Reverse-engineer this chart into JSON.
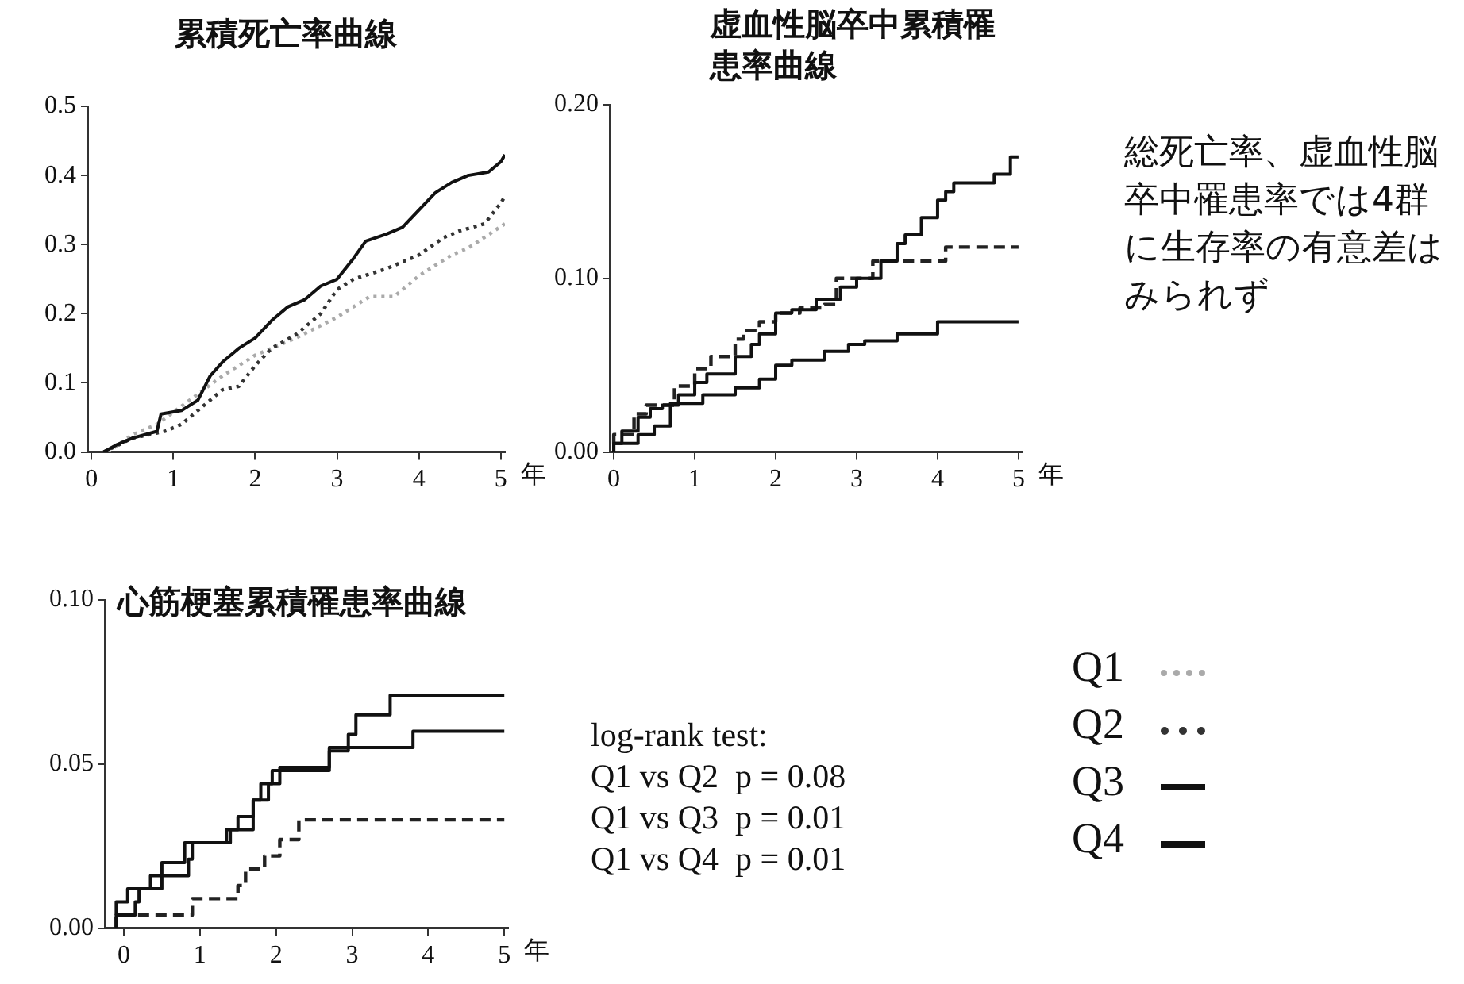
{
  "chart_data": [
    {
      "type": "line",
      "title": "累積死亡率曲線",
      "xlabel": "年",
      "xlim": [
        -0.05,
        5.05
      ],
      "xticks": [
        0,
        1,
        2,
        3,
        4,
        5
      ],
      "ylim": [
        0,
        0.5
      ],
      "yticks": [
        {
          "value": 0,
          "label": "0.0"
        },
        0.1,
        0.2,
        0.3,
        0.4,
        0.5
      ],
      "grid": false,
      "legend": false,
      "series": [
        {
          "color": "#111111",
          "line_style": "solid",
          "x": [
            0.15,
            0.3,
            0.5,
            0.8,
            0.85,
            1.1,
            1.3,
            1.45,
            1.6,
            1.8,
            2.0,
            2.2,
            2.4,
            2.6,
            2.8,
            3.0,
            3.2,
            3.35,
            3.6,
            3.8,
            4.0,
            4.2,
            4.4,
            4.6,
            4.85,
            5.0,
            5.05
          ],
          "values": [
            0,
            0.01,
            0.02,
            0.03,
            0.055,
            0.06,
            0.075,
            0.11,
            0.13,
            0.15,
            0.165,
            0.19,
            0.21,
            0.22,
            0.24,
            0.25,
            0.28,
            0.305,
            0.315,
            0.325,
            0.35,
            0.375,
            0.39,
            0.4,
            0.405,
            0.42,
            0.43
          ]
        },
        {
          "color": "#333333",
          "line_style": "dotted",
          "x": [
            0.15,
            0.5,
            0.9,
            1.1,
            1.4,
            1.6,
            1.8,
            2.0,
            2.2,
            2.5,
            2.8,
            3.0,
            3.2,
            3.6,
            4.0,
            4.3,
            4.5,
            4.8,
            5.0,
            5.05
          ],
          "values": [
            0,
            0.02,
            0.03,
            0.04,
            0.07,
            0.09,
            0.095,
            0.125,
            0.15,
            0.17,
            0.2,
            0.235,
            0.25,
            0.265,
            0.285,
            0.31,
            0.32,
            0.33,
            0.36,
            0.37
          ]
        },
        {
          "color": "#aaaaaa",
          "line_style": "dotted",
          "x": [
            0.2,
            0.5,
            0.8,
            1.2,
            1.6,
            2.0,
            2.5,
            3.0,
            3.2,
            3.4,
            3.7,
            4.0,
            4.4,
            4.6,
            5.05
          ],
          "values": [
            0,
            0.025,
            0.04,
            0.075,
            0.11,
            0.14,
            0.165,
            0.195,
            0.21,
            0.225,
            0.225,
            0.255,
            0.285,
            0.295,
            0.33
          ]
        }
      ]
    },
    {
      "type": "step",
      "title": "虚血性脳卒中累積罹患率曲線",
      "xlabel": "年",
      "xlim": [
        -0.05,
        5.05
      ],
      "xticks": [
        0,
        1,
        2,
        3,
        4,
        5
      ],
      "ylim": [
        0,
        0.2
      ],
      "yticks": [
        {
          "value": 0,
          "label": "0.00"
        },
        {
          "value": 0.1,
          "label": "0.10"
        },
        {
          "value": 0.2,
          "label": "0.20"
        }
      ],
      "grid": false,
      "legend": false,
      "series": [
        {
          "color": "#111111",
          "line_style": "solid",
          "x": [
            0,
            0.1,
            0.3,
            0.45,
            0.6,
            0.8,
            1.0,
            1.15,
            1.5,
            1.7,
            1.8,
            2.0,
            2.2,
            2.5,
            2.8,
            3.0,
            3.3,
            3.5,
            3.6,
            3.8,
            4.0,
            4.1,
            4.2,
            4.7,
            4.9,
            5.0
          ],
          "values": [
            0,
            0.005,
            0.012,
            0.02,
            0.025,
            0.027,
            0.033,
            0.04,
            0.045,
            0.055,
            0.062,
            0.068,
            0.08,
            0.082,
            0.088,
            0.095,
            0.1,
            0.11,
            0.12,
            0.125,
            0.135,
            0.145,
            0.15,
            0.155,
            0.16,
            0.17
          ]
        },
        {
          "color": "#222222",
          "line_style": "dashed",
          "x": [
            0,
            0.25,
            0.4,
            0.75,
            1.0,
            1.2,
            1.5,
            1.6,
            1.8,
            2.0,
            2.3,
            2.6,
            2.75,
            2.95,
            3.2,
            4.1,
            4.35,
            5.0
          ],
          "values": [
            0.005,
            0.01,
            0.022,
            0.027,
            0.038,
            0.048,
            0.055,
            0.065,
            0.07,
            0.075,
            0.08,
            0.083,
            0.085,
            0.1,
            0.1,
            0.11,
            0.118,
            0.118
          ]
        },
        {
          "color": "#111111",
          "line_style": "solid",
          "x": [
            0,
            0.3,
            0.5,
            0.7,
            1.1,
            1.5,
            1.8,
            2.0,
            2.2,
            2.6,
            2.9,
            3.1,
            3.5,
            4.0,
            4.1,
            5.0
          ],
          "values": [
            0,
            0.005,
            0.01,
            0.015,
            0.028,
            0.033,
            0.037,
            0.042,
            0.05,
            0.053,
            0.058,
            0.062,
            0.064,
            0.068,
            0.075,
            0.075
          ]
        }
      ]
    },
    {
      "type": "other",
      "annotations": [
        "総死亡率、虚血性脳卒中罹患率では4群に生存率の有意差はみられず"
      ]
    },
    {
      "type": "step",
      "title": "心筋梗塞累積罹患率曲線",
      "xlabel": "年",
      "xlim": [
        -0.25,
        5.05
      ],
      "xticks": [
        0,
        1,
        2,
        3,
        4,
        5
      ],
      "ylim": [
        0,
        0.1
      ],
      "yticks": [
        {
          "value": 0,
          "label": "0.00"
        },
        {
          "value": 0.05,
          "label": "0.05"
        },
        {
          "value": 0.1,
          "label": "0.10"
        }
      ],
      "grid": false,
      "legend": false,
      "annotations": [
        "log-rank test:",
        "Q1 vs Q2  p = 0.08",
        "Q1 vs Q3  p = 0.01",
        "Q1 vs Q4  p = 0.01"
      ],
      "series": [
        {
          "color": "#111111",
          "line_style": "solid",
          "x": [
            -0.1,
            0.05,
            0.35,
            0.5,
            0.8,
            1.35,
            1.5,
            1.7,
            1.8,
            1.95,
            2.05,
            2.7,
            2.95,
            3.05,
            3.5,
            4.0,
            5.0
          ],
          "values": [
            0.004,
            0.008,
            0.012,
            0.016,
            0.02,
            0.026,
            0.03,
            0.034,
            0.039,
            0.044,
            0.048,
            0.048,
            0.054,
            0.059,
            0.065,
            0.071,
            0.071
          ]
        },
        {
          "color": "#111111",
          "line_style": "solid",
          "x": [
            -0.1,
            0.15,
            0.2,
            0.5,
            0.85,
            0.9,
            1.4,
            1.7,
            1.9,
            2.05,
            2.7,
            3.8,
            4.75,
            5.0
          ],
          "values": [
            0,
            0.004,
            0.008,
            0.012,
            0.016,
            0.021,
            0.026,
            0.03,
            0.039,
            0.044,
            0.049,
            0.055,
            0.06,
            0.06
          ]
        },
        {
          "color": "#222222",
          "line_style": "dashed",
          "x": [
            -0.1,
            0.9,
            1.5,
            1.6,
            1.85,
            2.05,
            2.3,
            4.75,
            5.0
          ],
          "values": [
            0,
            0.004,
            0.009,
            0.013,
            0.018,
            0.022,
            0.027,
            0.033,
            0.033
          ]
        }
      ]
    },
    {
      "type": "other",
      "annotations": [
        "Q1",
        "Q2",
        "Q3",
        "Q4"
      ]
    }
  ]
}
